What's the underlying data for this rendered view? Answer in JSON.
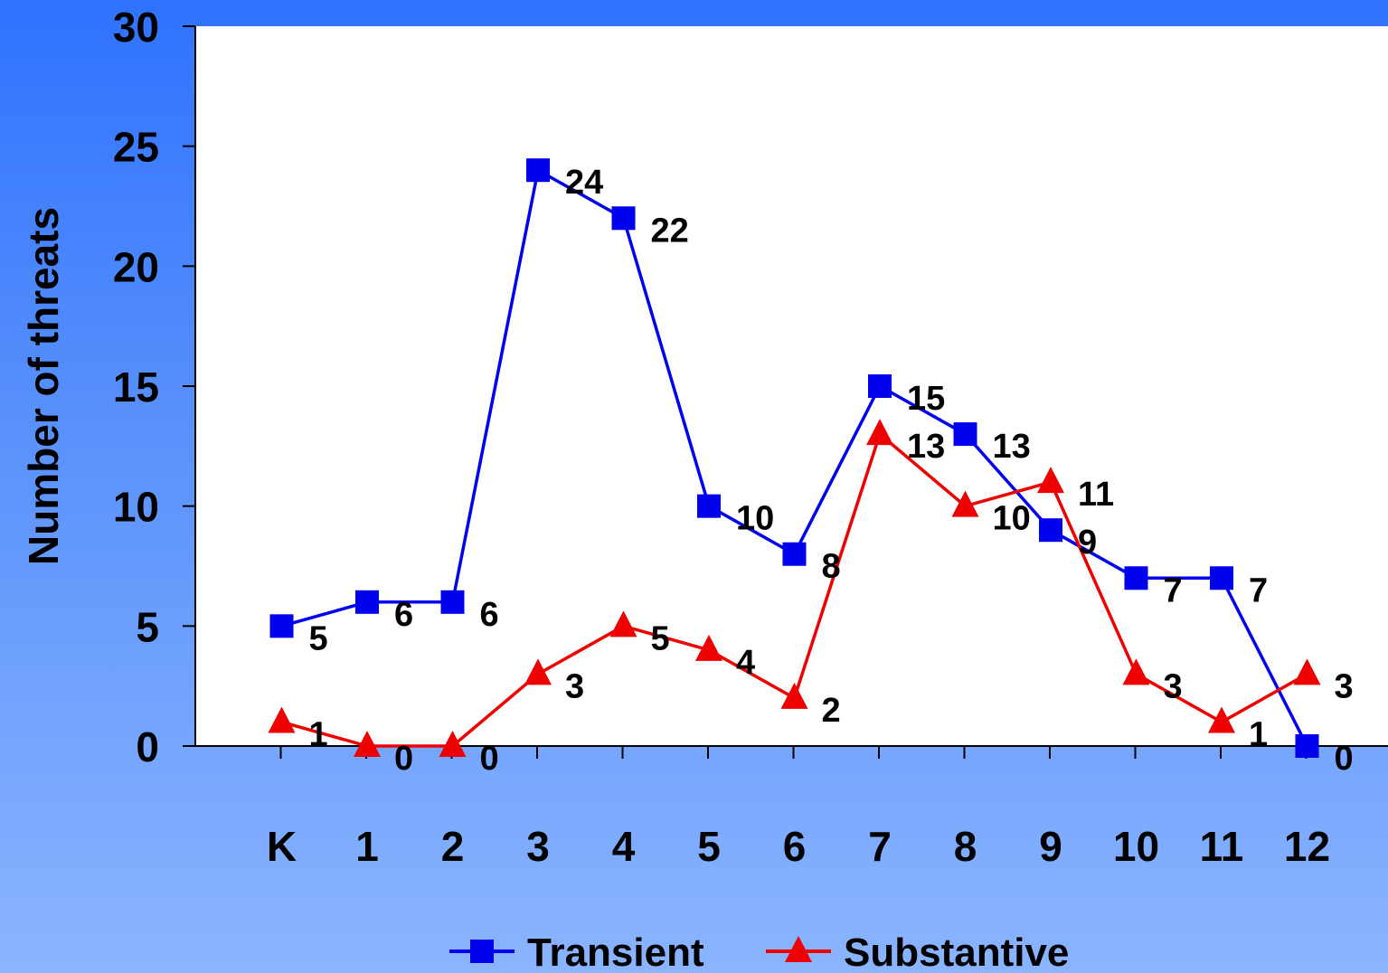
{
  "chart_data": {
    "type": "line",
    "ylabel": "Number of threats",
    "xlabel": "",
    "ylim": [
      0,
      30
    ],
    "yticks": [
      "0",
      "5",
      "10",
      "15",
      "20",
      "25",
      "30"
    ],
    "categories": [
      "K",
      "1",
      "2",
      "3",
      "4",
      "5",
      "6",
      "7",
      "8",
      "9",
      "10",
      "11",
      "12"
    ],
    "grid": false,
    "legend": "bottom",
    "series": [
      {
        "name": "Transient",
        "color": "#0000ee",
        "marker": "square",
        "values": [
          5,
          6,
          6,
          24,
          22,
          10,
          8,
          15,
          13,
          9,
          7,
          7,
          0
        ],
        "labels": [
          "5",
          "6",
          "6",
          "24",
          "22",
          "10",
          "8",
          "15",
          "13",
          "9",
          "7",
          "7",
          "0"
        ]
      },
      {
        "name": "Substantive",
        "color": "#ee0000",
        "marker": "triangle",
        "values": [
          1,
          0,
          0,
          3,
          5,
          4,
          2,
          13,
          10,
          11,
          3,
          1,
          3
        ],
        "labels": [
          "1",
          "0",
          "0",
          "3",
          "5",
          "4",
          "2",
          "13",
          "10",
          "11",
          "3",
          "1",
          "3"
        ]
      }
    ]
  }
}
